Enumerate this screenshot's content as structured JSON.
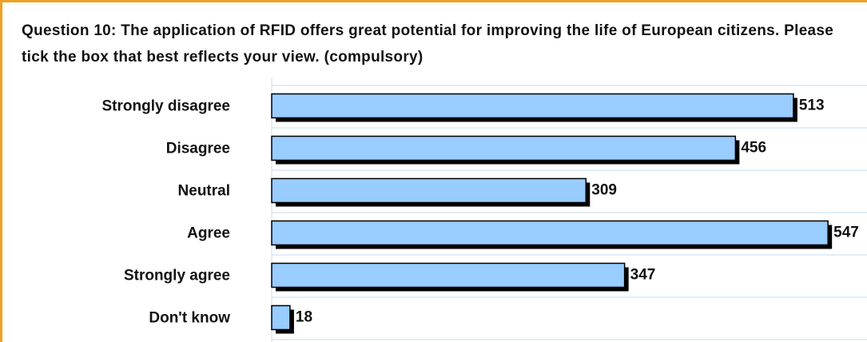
{
  "chart_data": {
    "type": "barh",
    "title": "Question 10: The application of RFID offers great potential for improving the life of European citizens. Please tick the box that best reflects your view. (compulsory)",
    "categories": [
      "Strongly disagree",
      "Disagree",
      "Neutral",
      "Agree",
      "Strongly agree",
      "Don't know"
    ],
    "values": [
      513,
      456,
      309,
      547,
      347,
      18
    ],
    "color": "#99ccff",
    "xlim": [
      0,
      550
    ]
  }
}
